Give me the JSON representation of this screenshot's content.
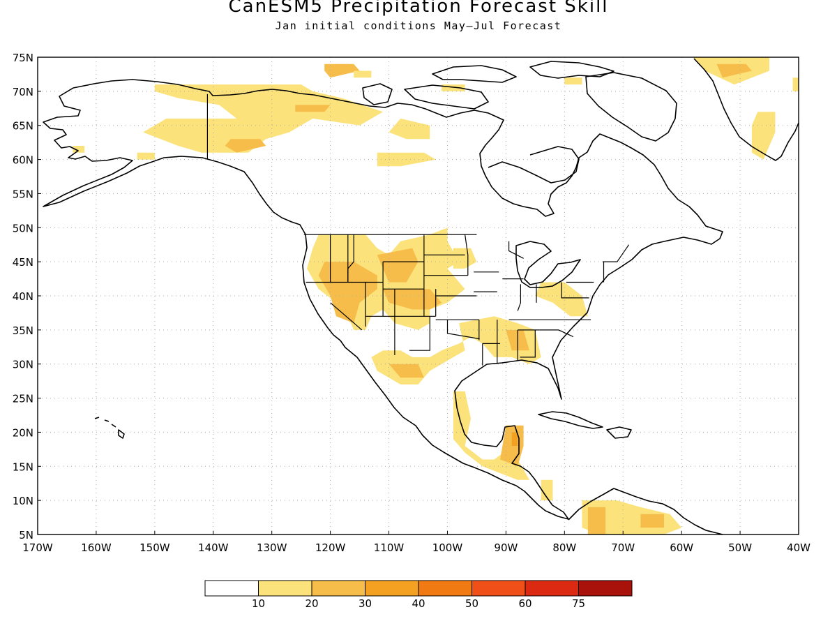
{
  "title": "CanESM5 Precipitation Forecast Skill",
  "subtitle": "Jan initial conditions  May–Jul Forecast",
  "map": {
    "lon_range": [
      -170,
      -40
    ],
    "lat_range": [
      5,
      75
    ],
    "lat_ticks": [
      {
        "value": 75,
        "label": "75N"
      },
      {
        "value": 70,
        "label": "70N"
      },
      {
        "value": 65,
        "label": "65N"
      },
      {
        "value": 60,
        "label": "60N"
      },
      {
        "value": 55,
        "label": "55N"
      },
      {
        "value": 50,
        "label": "50N"
      },
      {
        "value": 45,
        "label": "45N"
      },
      {
        "value": 40,
        "label": "40N"
      },
      {
        "value": 35,
        "label": "35N"
      },
      {
        "value": 30,
        "label": "30N"
      },
      {
        "value": 25,
        "label": "25N"
      },
      {
        "value": 20,
        "label": "20N"
      },
      {
        "value": 15,
        "label": "15N"
      },
      {
        "value": 10,
        "label": "10N"
      },
      {
        "value": 5,
        "label": "5N"
      }
    ],
    "lon_ticks": [
      {
        "value": -170,
        "label": "170W"
      },
      {
        "value": -160,
        "label": "160W"
      },
      {
        "value": -150,
        "label": "150W"
      },
      {
        "value": -140,
        "label": "140W"
      },
      {
        "value": -130,
        "label": "130W"
      },
      {
        "value": -120,
        "label": "120W"
      },
      {
        "value": -110,
        "label": "110W"
      },
      {
        "value": -100,
        "label": "100W"
      },
      {
        "value": -90,
        "label": "90W"
      },
      {
        "value": -80,
        "label": "80W"
      },
      {
        "value": -70,
        "label": "70W"
      },
      {
        "value": -60,
        "label": "60W"
      },
      {
        "value": -50,
        "label": "50W"
      },
      {
        "value": -40,
        "label": "40W"
      }
    ],
    "gridlines": "dotted"
  },
  "colorbar": {
    "colors": [
      "#ffffff",
      "#fbe27a",
      "#f7bd4a",
      "#f4a020",
      "#f27a12",
      "#f05018",
      "#dc2a12",
      "#a8120a"
    ],
    "labels": [
      "10",
      "20",
      "30",
      "40",
      "50",
      "60",
      "75"
    ]
  },
  "skill_regions": [
    {
      "level": 1,
      "poly": [
        [
          -150,
          71
        ],
        [
          -133,
          71
        ],
        [
          -125,
          71
        ],
        [
          -123,
          70
        ],
        [
          -118,
          69
        ],
        [
          -111,
          67
        ],
        [
          -115,
          65
        ],
        [
          -123,
          66
        ],
        [
          -127,
          64
        ],
        [
          -131,
          63
        ],
        [
          -134,
          61
        ],
        [
          -137,
          61
        ],
        [
          -142,
          61
        ],
        [
          -146,
          62
        ],
        [
          -149,
          63
        ],
        [
          -152,
          64
        ],
        [
          -148,
          66
        ],
        [
          -136,
          66
        ],
        [
          -139,
          68
        ],
        [
          -146,
          69
        ],
        [
          -150,
          70
        ]
      ]
    },
    {
      "level": 2,
      "poly": [
        [
          -137,
          63
        ],
        [
          -132,
          63
        ],
        [
          -131,
          62
        ],
        [
          -136,
          61
        ],
        [
          -138,
          62
        ]
      ]
    },
    {
      "level": 2,
      "poly": [
        [
          -126,
          68
        ],
        [
          -120,
          68
        ],
        [
          -121,
          67
        ],
        [
          -126,
          67
        ]
      ]
    },
    {
      "level": 1,
      "poly": [
        [
          -164,
          62
        ],
        [
          -162,
          62
        ],
        [
          -162,
          61
        ],
        [
          -164,
          61
        ]
      ]
    },
    {
      "level": 1,
      "poly": [
        [
          -108,
          66
        ],
        [
          -103,
          65
        ],
        [
          -103,
          63
        ],
        [
          -107,
          63
        ],
        [
          -110,
          64
        ]
      ]
    },
    {
      "level": 1,
      "poly": [
        [
          -112,
          61
        ],
        [
          -104,
          61
        ],
        [
          -102,
          60
        ],
        [
          -108,
          59
        ],
        [
          -112,
          59
        ]
      ]
    },
    {
      "level": 1,
      "poly": [
        [
          -153,
          61
        ],
        [
          -150,
          61
        ],
        [
          -150,
          60
        ],
        [
          -153,
          60
        ]
      ]
    },
    {
      "level": 2,
      "poly": [
        [
          -121,
          74
        ],
        [
          -116,
          74
        ],
        [
          -115,
          73
        ],
        [
          -120,
          72
        ],
        [
          -121,
          73
        ]
      ]
    },
    {
      "level": 1,
      "poly": [
        [
          -116,
          73
        ],
        [
          -113,
          73
        ],
        [
          -113,
          72
        ],
        [
          -116,
          72
        ]
      ]
    },
    {
      "level": 1,
      "poly": [
        [
          -101,
          71
        ],
        [
          -97,
          71
        ],
        [
          -97,
          70
        ],
        [
          -101,
          70
        ]
      ]
    },
    {
      "level": 1,
      "poly": [
        [
          -80,
          72
        ],
        [
          -77,
          72
        ],
        [
          -77,
          71
        ],
        [
          -80,
          71
        ]
      ]
    },
    {
      "level": 1,
      "poly": [
        [
          -58,
          75
        ],
        [
          -45,
          75
        ],
        [
          -45,
          73
        ],
        [
          -51,
          71
        ],
        [
          -56,
          73
        ]
      ]
    },
    {
      "level": 2,
      "poly": [
        [
          -54,
          74
        ],
        [
          -49,
          74
        ],
        [
          -48,
          73
        ],
        [
          -53,
          72
        ]
      ]
    },
    {
      "level": 1,
      "poly": [
        [
          -47,
          67
        ],
        [
          -44,
          67
        ],
        [
          -44,
          64
        ],
        [
          -46,
          60
        ],
        [
          -48,
          61
        ],
        [
          -48,
          65
        ]
      ]
    },
    {
      "level": 1,
      "poly": [
        [
          -40,
          72
        ],
        [
          -41,
          72
        ],
        [
          -41,
          70
        ],
        [
          -40,
          70
        ]
      ]
    },
    {
      "level": 1,
      "poly": [
        [
          -122,
          49
        ],
        [
          -114,
          49
        ],
        [
          -112,
          47
        ],
        [
          -110,
          46
        ],
        [
          -108,
          48
        ],
        [
          -103,
          49
        ],
        [
          -100,
          50
        ],
        [
          -100,
          48
        ],
        [
          -98,
          45
        ],
        [
          -100,
          44
        ],
        [
          -97,
          41
        ],
        [
          -100,
          39
        ],
        [
          -103,
          38
        ],
        [
          -103,
          36
        ],
        [
          -105,
          35
        ],
        [
          -109,
          36
        ],
        [
          -111,
          38
        ],
        [
          -113,
          37
        ],
        [
          -114,
          35
        ],
        [
          -116,
          35
        ],
        [
          -117,
          37
        ],
        [
          -119,
          39
        ],
        [
          -122,
          41
        ],
        [
          -124,
          44
        ],
        [
          -123,
          47
        ]
      ]
    },
    {
      "level": 2,
      "poly": [
        [
          -121,
          45
        ],
        [
          -116,
          45
        ],
        [
          -112,
          43
        ],
        [
          -112,
          41
        ],
        [
          -115,
          39
        ],
        [
          -116,
          36
        ],
        [
          -119,
          37
        ],
        [
          -120,
          40
        ],
        [
          -122,
          43
        ]
      ]
    },
    {
      "level": 2,
      "poly": [
        [
          -112,
          46
        ],
        [
          -106,
          47
        ],
        [
          -105,
          45
        ],
        [
          -107,
          42
        ],
        [
          -110,
          42
        ],
        [
          -111,
          44
        ]
      ]
    },
    {
      "level": 2,
      "poly": [
        [
          -111,
          41
        ],
        [
          -103,
          41
        ],
        [
          -101,
          39
        ],
        [
          -103,
          38
        ],
        [
          -106,
          38
        ],
        [
          -110,
          39
        ]
      ]
    },
    {
      "level": 1,
      "poly": [
        [
          -99,
          47
        ],
        [
          -96,
          47
        ],
        [
          -95,
          45
        ],
        [
          -97,
          44
        ],
        [
          -99,
          44
        ]
      ]
    },
    {
      "level": 1,
      "poly": [
        [
          -84,
          42
        ],
        [
          -80,
          42
        ],
        [
          -77,
          40
        ],
        [
          -76,
          37
        ],
        [
          -79,
          37
        ],
        [
          -82,
          39
        ],
        [
          -85,
          40
        ]
      ]
    },
    {
      "level": 1,
      "poly": [
        [
          -98,
          36
        ],
        [
          -92,
          37
        ],
        [
          -88,
          36
        ],
        [
          -85,
          35
        ],
        [
          -84,
          31
        ],
        [
          -86,
          30
        ],
        [
          -89,
          31
        ],
        [
          -92,
          31
        ],
        [
          -94,
          33
        ],
        [
          -96,
          34
        ],
        [
          -98,
          33
        ],
        [
          -101,
          32
        ],
        [
          -103,
          31
        ],
        [
          -106,
          31
        ],
        [
          -108,
          32
        ],
        [
          -111,
          32
        ],
        [
          -113,
          31
        ],
        [
          -112,
          29
        ],
        [
          -108,
          27
        ],
        [
          -105,
          27
        ],
        [
          -103,
          29
        ],
        [
          -101,
          30
        ],
        [
          -99,
          31
        ],
        [
          -97,
          32
        ]
      ]
    },
    {
      "level": 2,
      "poly": [
        [
          -110,
          30
        ],
        [
          -105,
          30
        ],
        [
          -104,
          28
        ],
        [
          -108,
          28
        ]
      ]
    },
    {
      "level": 2,
      "poly": [
        [
          -90,
          35
        ],
        [
          -87,
          35
        ],
        [
          -86,
          32
        ],
        [
          -89,
          32
        ]
      ]
    },
    {
      "level": 1,
      "poly": [
        [
          -99,
          26
        ],
        [
          -97,
          26
        ],
        [
          -96,
          22
        ],
        [
          -97,
          18
        ],
        [
          -94,
          16
        ],
        [
          -92,
          16
        ],
        [
          -89,
          18
        ],
        [
          -88,
          21
        ],
        [
          -88,
          16
        ],
        [
          -86,
          13
        ],
        [
          -88,
          13
        ],
        [
          -91,
          14
        ],
        [
          -94,
          15
        ],
        [
          -97,
          17
        ],
        [
          -99,
          19
        ],
        [
          -99,
          23
        ]
      ]
    },
    {
      "level": 2,
      "poly": [
        [
          -90,
          21
        ],
        [
          -87,
          21
        ],
        [
          -87,
          18
        ],
        [
          -88,
          15
        ],
        [
          -91,
          16
        ]
      ]
    },
    {
      "level": 3,
      "poly": [
        [
          -89,
          20
        ],
        [
          -88,
          20
        ],
        [
          -88,
          18
        ],
        [
          -89,
          18
        ]
      ]
    },
    {
      "level": 1,
      "poly": [
        [
          -84,
          13
        ],
        [
          -82,
          13
        ],
        [
          -82,
          10
        ],
        [
          -84,
          10
        ]
      ]
    },
    {
      "level": 1,
      "poly": [
        [
          -77,
          10
        ],
        [
          -71,
          10
        ],
        [
          -67,
          9
        ],
        [
          -62,
          8
        ],
        [
          -60,
          6
        ],
        [
          -63,
          5
        ],
        [
          -68,
          5
        ],
        [
          -74,
          5
        ],
        [
          -77,
          6
        ]
      ]
    },
    {
      "level": 2,
      "poly": [
        [
          -76,
          9
        ],
        [
          -73,
          9
        ],
        [
          -73,
          5
        ],
        [
          -76,
          5
        ]
      ]
    },
    {
      "level": 2,
      "poly": [
        [
          -67,
          8
        ],
        [
          -63,
          8
        ],
        [
          -63,
          6
        ],
        [
          -67,
          6
        ]
      ]
    }
  ],
  "states_lines": [
    [
      [
        -124.5,
        49
      ],
      [
        -95,
        49
      ]
    ],
    [
      [
        -141,
        69.6
      ],
      [
        -141,
        60
      ]
    ],
    [
      [
        -120,
        49
      ],
      [
        -120,
        42
      ]
    ],
    [
      [
        -124.2,
        42
      ],
      [
        -111,
        42
      ]
    ],
    [
      [
        -120,
        39
      ],
      [
        -114.6,
        35
      ]
    ],
    [
      [
        -117,
        49
      ],
      [
        -117,
        42
      ]
    ],
    [
      [
        -116,
        49
      ],
      [
        -116,
        45
      ],
      [
        -117,
        44
      ],
      [
        -117,
        42
      ]
    ],
    [
      [
        -114,
        42
      ],
      [
        -114,
        35.5
      ]
    ],
    [
      [
        -111,
        45
      ],
      [
        -111,
        37
      ]
    ],
    [
      [
        -111,
        41
      ],
      [
        -104,
        41
      ]
    ],
    [
      [
        -111,
        45
      ],
      [
        -104,
        45
      ]
    ],
    [
      [
        -109,
        41
      ],
      [
        -109,
        31.3
      ]
    ],
    [
      [
        -104,
        49
      ],
      [
        -104,
        37
      ]
    ],
    [
      [
        -103,
        37
      ],
      [
        -103,
        32
      ],
      [
        -106.5,
        32
      ]
    ],
    [
      [
        -114,
        37
      ],
      [
        -102,
        37
      ]
    ],
    [
      [
        -102,
        41
      ],
      [
        -102,
        37
      ]
    ],
    [
      [
        -102,
        40
      ],
      [
        -95,
        40
      ]
    ],
    [
      [
        -104,
        43
      ],
      [
        -96.5,
        43
      ]
    ],
    [
      [
        -104,
        46
      ],
      [
        -97,
        46
      ]
    ],
    [
      [
        -97,
        49
      ],
      [
        -96.5,
        46
      ],
      [
        -96.5,
        43
      ]
    ],
    [
      [
        -102,
        36.5
      ],
      [
        -94.6,
        36.5
      ]
    ],
    [
      [
        -100,
        36.5
      ],
      [
        -100,
        34.5
      ],
      [
        -94.5,
        33.7
      ]
    ],
    [
      [
        -94.6,
        36.5
      ],
      [
        -94.6,
        33.5
      ]
    ],
    [
      [
        -94,
        33
      ],
      [
        -91,
        33
      ]
    ],
    [
      [
        -95.5,
        43.5
      ],
      [
        -91.2,
        43.5
      ]
    ],
    [
      [
        -95.5,
        40.6
      ],
      [
        -91.5,
        40.6
      ]
    ],
    [
      [
        -89.5,
        36.5
      ],
      [
        -82,
        36.5
      ]
    ],
    [
      [
        -88,
        35
      ],
      [
        -84.3,
        35
      ]
    ],
    [
      [
        -88,
        35
      ],
      [
        -88,
        30.5
      ]
    ],
    [
      [
        -85,
        35
      ],
      [
        -85,
        31
      ],
      [
        -87.6,
        31
      ]
    ],
    [
      [
        -84.3,
        35
      ],
      [
        -81,
        35
      ],
      [
        -78.5,
        34
      ]
    ],
    [
      [
        -82,
        36.5
      ],
      [
        -75.5,
        36.5
      ]
    ],
    [
      [
        -80.5,
        42
      ],
      [
        -80.5,
        39.7
      ],
      [
        -75.8,
        39.7
      ]
    ],
    [
      [
        -79.7,
        42
      ],
      [
        -75,
        42
      ]
    ],
    [
      [
        -87.5,
        41.7
      ],
      [
        -87.5,
        39
      ],
      [
        -88,
        37.8
      ]
    ],
    [
      [
        -84.8,
        41.7
      ],
      [
        -84.8,
        39
      ]
    ],
    [
      [
        -90.6,
        42.5
      ],
      [
        -87,
        42.5
      ]
    ],
    [
      [
        -89.5,
        48
      ],
      [
        -89.5,
        46.6
      ],
      [
        -87,
        45.5
      ]
    ],
    [
      [
        -73.5,
        45
      ],
      [
        -71,
        45
      ],
      [
        -69,
        47.5
      ]
    ],
    [
      [
        -73.3,
        42
      ],
      [
        -73.3,
        45
      ]
    ],
    [
      [
        -91.5,
        36.5
      ],
      [
        -91.5,
        30
      ]
    ],
    [
      [
        -94,
        33
      ],
      [
        -94,
        29.8
      ]
    ]
  ]
}
